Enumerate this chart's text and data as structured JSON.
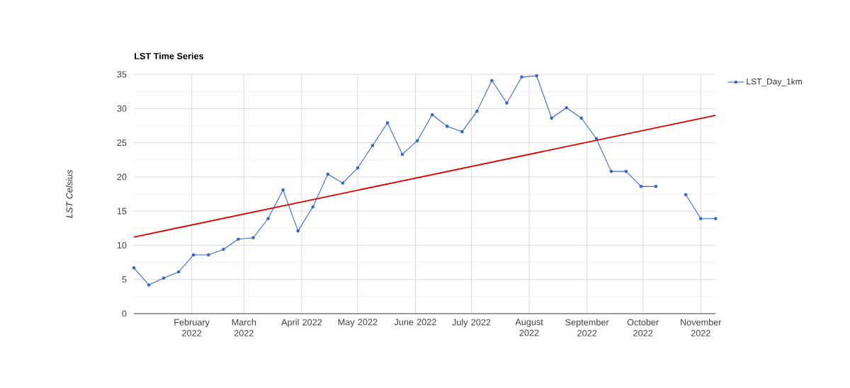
{
  "chart_data": {
    "type": "line",
    "title": "**LST  Time Series**",
    "ylabel": "*LST Celsius*",
    "x": [
      "2022-01-01",
      "2022-01-09",
      "2022-01-17",
      "2022-01-25",
      "2022-02-02",
      "2022-02-10",
      "2022-02-18",
      "2022-02-26",
      "2022-03-06",
      "2022-03-14",
      "2022-03-22",
      "2022-03-30",
      "2022-04-07",
      "2022-04-15",
      "2022-04-23",
      "2022-05-01",
      "2022-05-09",
      "2022-05-17",
      "2022-05-25",
      "2022-06-02",
      "2022-06-10",
      "2022-06-18",
      "2022-06-26",
      "2022-07-04",
      "2022-07-12",
      "2022-07-20",
      "2022-07-28",
      "2022-08-05",
      "2022-08-13",
      "2022-08-21",
      "2022-08-29",
      "2022-09-06",
      "2022-09-14",
      "2022-09-22",
      "2022-09-30",
      "2022-10-08",
      "2022-10-16",
      "2022-10-24",
      "2022-11-01",
      "2022-11-09"
    ],
    "series": [
      {
        "name": "LST_Day_1km",
        "color": "#3366cc",
        "marker": "circle",
        "values": [
          6.7,
          4.2,
          5.2,
          6.1,
          8.6,
          8.6,
          9.4,
          10.9,
          11.1,
          13.9,
          18.1,
          12.1,
          15.6,
          20.4,
          19.1,
          21.3,
          24.6,
          27.9,
          23.3,
          25.3,
          29.1,
          27.4,
          26.6,
          29.6,
          34.1,
          30.8,
          34.6,
          34.8,
          28.6,
          30.1,
          28.6,
          25.6,
          20.8,
          20.8,
          18.6,
          18.6,
          null,
          17.4,
          13.9,
          13.9
        ]
      },
      {
        "type": "line",
        "color": "#dd0000",
        "x": [
          "2022-01-01",
          "2022-11-09"
        ],
        "values": [
          11.2,
          29.0
        ]
      }
    ],
    "xlim": [
      "2022-01-01",
      "2022-11-09"
    ],
    "xticks": [
      {
        "value": "2022-02-01",
        "label": "February 2022"
      },
      {
        "value": "2022-03-01",
        "label": "March 2022"
      },
      {
        "value": "2022-04-01",
        "label": "April 2022"
      },
      {
        "value": "2022-05-01",
        "label": "May 2022"
      },
      {
        "value": "2022-06-01",
        "label": "June 2022"
      },
      {
        "value": "2022-07-01",
        "label": "July 2022"
      },
      {
        "value": "2022-08-01",
        "label": "August 2022"
      },
      {
        "value": "2022-09-01",
        "label": "September 2022"
      },
      {
        "value": "2022-10-01",
        "label": "October 2022"
      },
      {
        "value": "2022-11-01",
        "label": "November 2022"
      }
    ],
    "ylim": [
      0,
      35
    ],
    "yticks": [
      0,
      5,
      10,
      15,
      20,
      25,
      30,
      35
    ],
    "grid": true,
    "legend": "top right"
  }
}
